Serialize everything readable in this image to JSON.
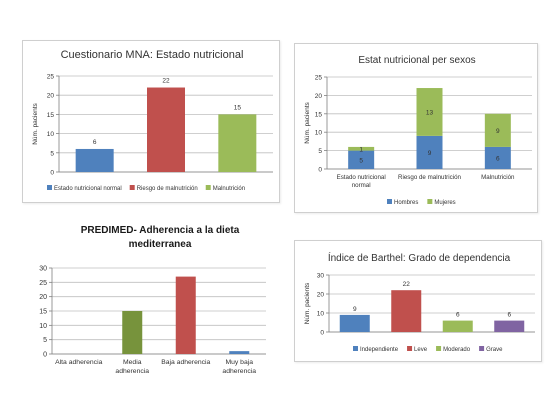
{
  "colors": {
    "blue": "#4f81bd",
    "red": "#c0504d",
    "green": "#9bbb59",
    "olive": "#77933c",
    "purple": "#8064a2",
    "grid": "#bfbfbf",
    "axis": "#808080",
    "text": "#333333"
  },
  "chart_data": [
    {
      "id": "mna",
      "type": "bar",
      "title": "Cuestionario  MNA: Estado nutricional",
      "xlabel": "",
      "ylabel": "Núm. pacients",
      "ylim": [
        0,
        25
      ],
      "yticks": [
        0,
        5,
        10,
        15,
        20,
        25
      ],
      "grid": true,
      "legend_position": "bottom",
      "categories": [
        "Estado nutricional normal",
        "Riesgo de malnutrición",
        "Malnutrición"
      ],
      "series": [
        {
          "name": "Estado nutricional normal",
          "color": "#4f81bd",
          "values": [
            6,
            null,
            null
          ]
        },
        {
          "name": "Riesgo de malnutrición",
          "color": "#c0504d",
          "values": [
            null,
            22,
            null
          ]
        },
        {
          "name": "Malnutrición",
          "color": "#9bbb59",
          "values": [
            null,
            null,
            15
          ]
        }
      ],
      "data_labels": true
    },
    {
      "id": "sexos",
      "type": "bar",
      "stacked": true,
      "title": "Estat nutricional per sexos",
      "xlabel": "",
      "ylabel": "Núm. pacients",
      "ylim": [
        0,
        25
      ],
      "yticks": [
        0,
        5,
        10,
        15,
        20,
        25
      ],
      "grid": true,
      "legend_position": "bottom",
      "categories": [
        "Estado nutricional normal",
        "Riesgo de malnutrición",
        "Malnutrición"
      ],
      "category_lines": [
        [
          "Estado nutricional",
          "normal"
        ],
        [
          "Riesgo de malnutrición"
        ],
        [
          "Malnutrición"
        ]
      ],
      "series": [
        {
          "name": "Hombres",
          "color": "#4f81bd",
          "values": [
            5,
            9,
            6
          ]
        },
        {
          "name": "Mujeres",
          "color": "#9bbb59",
          "values": [
            1,
            13,
            9
          ]
        }
      ],
      "data_labels": true
    },
    {
      "id": "predimed",
      "type": "bar",
      "title": "PREDIMED- Adherencia a la dieta mediterranea",
      "title_lines": [
        "PREDIMED- Adherencia a la dieta",
        "mediterranea"
      ],
      "xlabel": "",
      "ylabel": "",
      "ylim": [
        0,
        30
      ],
      "yticks": [
        0,
        5,
        10,
        15,
        20,
        25,
        30
      ],
      "grid": true,
      "legend_position": "none",
      "categories": [
        "Alta adherencia",
        "Media adherencia",
        "Baja adherencia",
        "Muy baja adherencia"
      ],
      "category_lines": [
        [
          "Alta adherencia"
        ],
        [
          "Media",
          "adherencia"
        ],
        [
          "Baja adherencia"
        ],
        [
          "Muy baja",
          "adherencia"
        ]
      ],
      "values": [
        0,
        15,
        27,
        1
      ],
      "colors": [
        "#4f81bd",
        "#77933c",
        "#c0504d",
        "#4f81bd"
      ],
      "data_labels": false
    },
    {
      "id": "barthel",
      "type": "bar",
      "title": "Índice de Barthel: Grado de dependencia",
      "xlabel": "",
      "ylabel": "Núm. pacients",
      "ylim": [
        0,
        30
      ],
      "yticks": [
        0,
        10,
        20,
        30
      ],
      "grid": true,
      "legend_position": "bottom",
      "categories": [
        "Independiente",
        "Leve",
        "Moderado",
        "Grave"
      ],
      "series": [
        {
          "name": "Independiente",
          "color": "#4f81bd",
          "values": [
            9,
            null,
            null,
            null
          ]
        },
        {
          "name": "Leve",
          "color": "#c0504d",
          "values": [
            null,
            22,
            null,
            null
          ]
        },
        {
          "name": "Moderado",
          "color": "#9bbb59",
          "values": [
            null,
            null,
            6,
            null
          ]
        },
        {
          "name": "Grave",
          "color": "#8064a2",
          "values": [
            null,
            null,
            null,
            6
          ]
        }
      ],
      "data_labels": true
    }
  ]
}
